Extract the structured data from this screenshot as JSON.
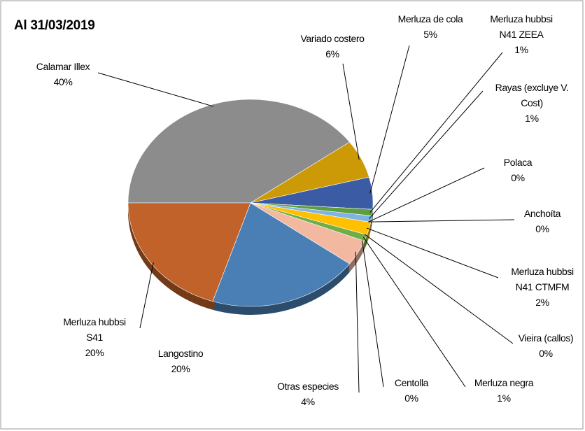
{
  "chart_data": {
    "type": "pie",
    "title": "Al 31/03/2019",
    "categories": [
      [
        "Calamar Illex"
      ],
      [
        "Variado costero"
      ],
      [
        "Merluza de cola"
      ],
      [
        "Merluza hubbsi",
        "N41 ZEEA"
      ],
      [
        "Rayas (excluye V.",
        "Cost)"
      ],
      [
        "Polaca"
      ],
      [
        "Anchoíta"
      ],
      [
        "Merluza hubbsi",
        "N41 CTMFM"
      ],
      [
        "Vieira (callos)"
      ],
      [
        "Merluza negra"
      ],
      [
        "Centolla"
      ],
      [
        "Otras especies"
      ],
      [
        "Langostino"
      ],
      [
        "Merluza hubbsi",
        "S41"
      ]
    ],
    "values": [
      40,
      6,
      5,
      1,
      1,
      0,
      0,
      2,
      0,
      1,
      0,
      4,
      20,
      20
    ],
    "value_labels": [
      "40%",
      "6%",
      "5%",
      "1%",
      "1%",
      "0%",
      "0%",
      "2%",
      "0%",
      "1%",
      "0%",
      "4%",
      "20%",
      "20%"
    ],
    "colors": [
      "#8c8c8c",
      "#cc9a06",
      "#3b5ba5",
      "#5f9e3c",
      "#7fb2e5",
      "#a9c8ec",
      "#9bbfe0",
      "#ffc000",
      "#b4d0ee",
      "#70ad47",
      "#9dc3e6",
      "#f2b8a0",
      "#4a7fb5",
      "#c0622a"
    ]
  }
}
